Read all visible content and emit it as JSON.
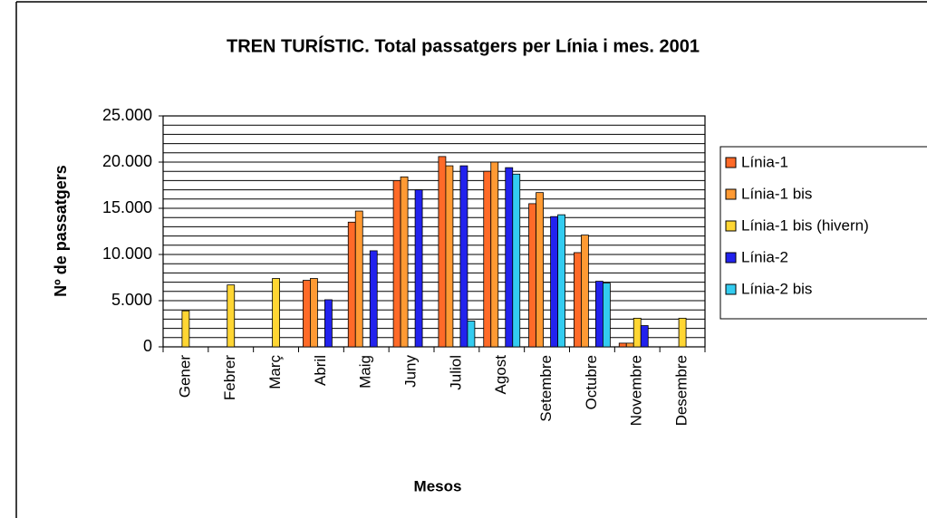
{
  "chart_data": {
    "type": "bar",
    "title": "TREN TURÍSTIC. Total passatgers per Línia i mes. 2001",
    "x_label": "Mesos",
    "y_label": "Nº de passatgers",
    "categories": [
      "Gener",
      "Febrer",
      "Març",
      "Abril",
      "Maig",
      "Juny",
      "Juliol",
      "Agost",
      "Setembre",
      "Octubre",
      "Novembre",
      "Desembre"
    ],
    "series": [
      {
        "name": "Línia-1",
        "color": "#ff6a28",
        "values": [
          null,
          null,
          null,
          7200,
          13500,
          18000,
          20600,
          19000,
          15500,
          10200,
          400,
          null
        ]
      },
      {
        "name": "Línia-1 bis",
        "color": "#ff9a33",
        "values": [
          null,
          null,
          null,
          7400,
          14700,
          18400,
          19600,
          20000,
          16700,
          12100,
          400,
          null
        ]
      },
      {
        "name": "Línia-1 bis (hivern)",
        "color": "#ffd633",
        "values": [
          3900,
          6700,
          7400,
          null,
          null,
          null,
          null,
          null,
          null,
          null,
          3100,
          3100
        ]
      },
      {
        "name": "Línia-2",
        "color": "#2222ee",
        "values": [
          null,
          null,
          null,
          5100,
          10400,
          17000,
          19600,
          19400,
          14100,
          7100,
          2300,
          null
        ]
      },
      {
        "name": "Línia-2 bis",
        "color": "#33ccf0",
        "values": [
          null,
          null,
          null,
          null,
          null,
          null,
          2800,
          18700,
          14300,
          6900,
          null,
          null
        ]
      }
    ],
    "ylim": [
      0,
      25000
    ],
    "yticks": [
      0,
      {
        "value": 5000,
        "label": "5.000"
      },
      {
        "value": 10000,
        "label": "10.000"
      },
      {
        "value": 15000,
        "label": "15.000"
      },
      {
        "value": 20000,
        "label": "20.000"
      },
      {
        "value": 25000,
        "label": "25.000"
      }
    ],
    "minor_grid": [
      1000,
      2000,
      3000,
      4000,
      6000,
      7000,
      8000,
      9000,
      11000,
      12000,
      13000,
      14000,
      16000,
      17000,
      18000,
      19000,
      21000,
      22000,
      23000,
      24000
    ],
    "grid": true,
    "legend": "right"
  }
}
